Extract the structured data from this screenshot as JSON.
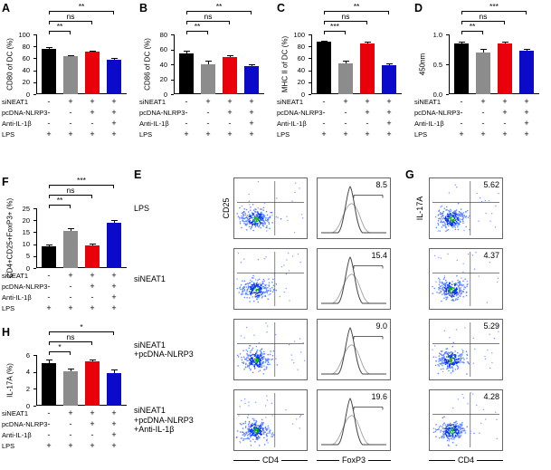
{
  "colors": {
    "bar_colors": [
      "#000000",
      "#8c8c8c",
      "#e8000b",
      "#0a0ac8"
    ],
    "axis": "#000000"
  },
  "treatments": {
    "rows": [
      {
        "name": "siNEAT1",
        "signs": [
          "-",
          "+",
          "+",
          "+"
        ]
      },
      {
        "name": "pcDNA-NLRP3",
        "signs": [
          "-",
          "-",
          "+",
          "+"
        ]
      },
      {
        "name": "Anti-IL-1β",
        "signs": [
          "-",
          "-",
          "-",
          "+"
        ]
      },
      {
        "name": "LPS",
        "signs": [
          "+",
          "+",
          "+",
          "+"
        ]
      }
    ]
  },
  "chart_data": [
    {
      "panel": "A",
      "type": "bar",
      "ylabel": "CD80 of DC (%)",
      "ylim": [
        0,
        100
      ],
      "ytick_values": [
        0,
        20,
        40,
        60,
        80,
        100
      ],
      "ytick_labels": [
        "0",
        "20",
        "40",
        "60",
        "80",
        "100"
      ],
      "values": [
        76,
        63,
        71,
        57
      ],
      "errors": [
        3,
        2,
        2,
        3
      ],
      "significance": [
        {
          "label": "**",
          "from": 0,
          "to": 1
        },
        {
          "label": "ns",
          "from": 0,
          "to": 2
        },
        {
          "label": "**",
          "from": 0,
          "to": 3
        }
      ]
    },
    {
      "panel": "B",
      "type": "bar",
      "ylabel": "CD86 of DC (%)",
      "ylim": [
        0,
        80
      ],
      "ytick_values": [
        0,
        20,
        40,
        60,
        80
      ],
      "ytick_labels": [
        "0",
        "20",
        "40",
        "60",
        "80"
      ],
      "values": [
        55,
        40,
        50,
        38
      ],
      "errors": [
        3,
        5,
        2,
        2
      ],
      "significance": [
        {
          "label": "**",
          "from": 0,
          "to": 1
        },
        {
          "label": "ns",
          "from": 0,
          "to": 2
        },
        {
          "label": "**",
          "from": 0,
          "to": 3
        }
      ]
    },
    {
      "panel": "C",
      "type": "bar",
      "ylabel": "MHC II of DC (%)",
      "ylim": [
        0,
        100
      ],
      "ytick_values": [
        0,
        20,
        40,
        60,
        80,
        100
      ],
      "ytick_labels": [
        "0",
        "20",
        "40",
        "60",
        "80",
        "100"
      ],
      "values": [
        88,
        52,
        85,
        48
      ],
      "errors": [
        2,
        4,
        3,
        3
      ],
      "significance": [
        {
          "label": "***",
          "from": 0,
          "to": 1
        },
        {
          "label": "ns",
          "from": 0,
          "to": 2
        },
        {
          "label": "**",
          "from": 0,
          "to": 3
        }
      ]
    },
    {
      "panel": "D",
      "type": "bar",
      "ylabel": "450nm",
      "ylim": [
        0,
        1.0
      ],
      "ytick_values": [
        0,
        0.5,
        1.0
      ],
      "ytick_labels": [
        "0.0",
        "0.5",
        "1.0"
      ],
      "values": [
        0.85,
        0.7,
        0.85,
        0.72
      ],
      "errors": [
        0.03,
        0.06,
        0.03,
        0.04
      ],
      "significance": [
        {
          "label": "**",
          "from": 0,
          "to": 1
        },
        {
          "label": "ns",
          "from": 0,
          "to": 2
        },
        {
          "label": "***",
          "from": 0,
          "to": 3
        }
      ]
    },
    {
      "panel": "F",
      "type": "bar",
      "ylabel": "CD4+CD25+FoxP3+ (%)",
      "ylim": [
        0,
        25
      ],
      "ytick_values": [
        0,
        5,
        10,
        15,
        20,
        25
      ],
      "ytick_labels": [
        "0",
        "5",
        "10",
        "15",
        "20",
        "25"
      ],
      "values": [
        9,
        15.5,
        9.5,
        19
      ],
      "errors": [
        0.8,
        1.2,
        0.8,
        1.2
      ],
      "significance": [
        {
          "label": "**",
          "from": 0,
          "to": 1
        },
        {
          "label": "ns",
          "from": 0,
          "to": 2
        },
        {
          "label": "***",
          "from": 0,
          "to": 3
        }
      ]
    },
    {
      "panel": "H",
      "type": "bar",
      "ylabel": "IL-17A (%)",
      "ylim": [
        0,
        6
      ],
      "ytick_values": [
        0,
        2,
        4,
        6
      ],
      "ytick_labels": [
        "0",
        "2",
        "4",
        "6"
      ],
      "values": [
        5.0,
        4.1,
        5.2,
        3.9
      ],
      "errors": [
        0.5,
        0.3,
        0.3,
        0.4
      ],
      "significance": [
        {
          "label": "*",
          "from": 0,
          "to": 1
        },
        {
          "label": "ns",
          "from": 0,
          "to": 2
        },
        {
          "label": "*",
          "from": 0,
          "to": 3
        }
      ]
    }
  ],
  "flow_E": {
    "panel": "E",
    "y_axis": "CD25",
    "x_axis_scatter": "CD4",
    "x_axis_hist": "FoxP3",
    "rows": [
      {
        "condition_lines": [
          "LPS"
        ],
        "percent": "8.5"
      },
      {
        "condition_lines": [
          "siNEAT1"
        ],
        "percent": "15.4"
      },
      {
        "condition_lines": [
          "siNEAT1",
          "+pcDNA-NLRP3"
        ],
        "percent": "9.0"
      },
      {
        "condition_lines": [
          "siNEAT1",
          "+pcDNA-NLRP3",
          "+Anti-IL-1β"
        ],
        "percent": "19.6"
      }
    ]
  },
  "flow_G": {
    "panel": "G",
    "y_axis": "IL-17A",
    "x_axis": "CD4",
    "rows": [
      {
        "percent": "5.62"
      },
      {
        "percent": "4.37"
      },
      {
        "percent": "5.29"
      },
      {
        "percent": "4.28"
      }
    ]
  }
}
